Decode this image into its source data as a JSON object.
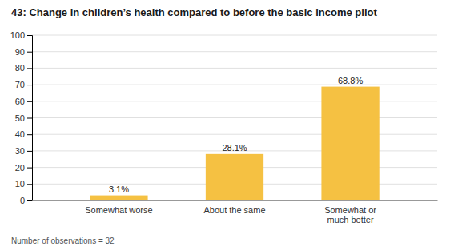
{
  "chart_data": {
    "type": "bar",
    "title": "43: Change in children’s health compared to before the basic income pilot",
    "categories": [
      "Somewhat worse",
      "About the same",
      "Somewhat or\nmuch better"
    ],
    "values": [
      3.1,
      28.1,
      68.8
    ],
    "value_labels": [
      "3.1%",
      "28.1%",
      "68.8%"
    ],
    "data_labels": true,
    "color": "#F5C142",
    "ylim": [
      0,
      100
    ],
    "yticks": [
      0,
      10,
      20,
      30,
      40,
      50,
      60,
      70,
      80,
      90,
      100
    ],
    "grid": true,
    "footnote": "Number of observations = 32"
  }
}
